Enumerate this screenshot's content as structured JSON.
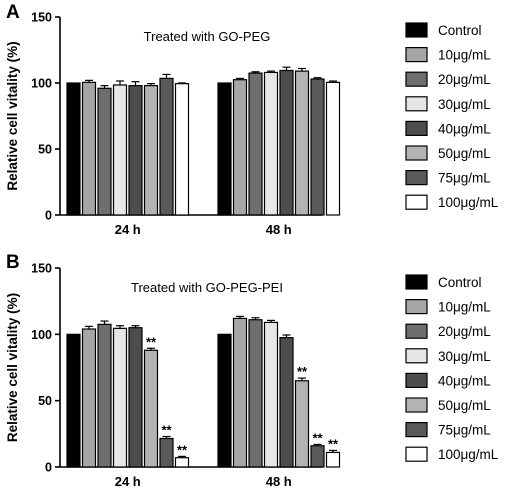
{
  "colors": [
    "#000000",
    "#a6a6a6",
    "#6e6e6e",
    "#e6e6e6",
    "#4d4d4d",
    "#b3b3b3",
    "#5a5a5a",
    "#ffffff"
  ],
  "panels": [
    {
      "letter": "A",
      "title": "Treated with GO-PEG",
      "ylabel": "Relative cell vitality (%)",
      "legend": [
        "Control",
        "10μg/mL",
        "20μg/mL",
        "30μg/mL",
        "40μg/mL",
        "50μg/mL",
        "75μg/mL",
        "100μg/mL"
      ]
    },
    {
      "letter": "B",
      "title": "Treated with GO-PEG-PEI",
      "ylabel": "Relative cell vitality (%)",
      "legend": [
        "Control",
        "10μg/mL",
        "20μg/mL",
        "30μg/mL",
        "40μg/mL",
        "50μg/mL",
        "75μg/mL",
        "100μg/mL"
      ]
    }
  ],
  "chart_data": [
    {
      "type": "bar",
      "title": "Treated with GO-PEG",
      "ylabel": "Relative cell vitality (%)",
      "categories": [
        "24 h",
        "48 h"
      ],
      "ylim": [
        0,
        150
      ],
      "yticks": [
        0,
        50,
        100,
        150
      ],
      "legend_position": "right",
      "series": [
        {
          "name": "Control",
          "values": [
            100,
            100
          ],
          "errors": [
            0,
            0
          ]
        },
        {
          "name": "10μg/mL",
          "values": [
            100.5,
            102.5
          ],
          "errors": [
            1.5,
            1
          ]
        },
        {
          "name": "20μg/mL",
          "values": [
            96,
            107.5
          ],
          "errors": [
            2,
            1
          ]
        },
        {
          "name": "30μg/mL",
          "values": [
            98.5,
            108
          ],
          "errors": [
            3,
            1
          ]
        },
        {
          "name": "40μg/mL",
          "values": [
            98,
            109.5
          ],
          "errors": [
            3,
            2.5
          ]
        },
        {
          "name": "50μg/mL",
          "values": [
            98,
            109
          ],
          "errors": [
            1.5,
            2
          ]
        },
        {
          "name": "75μg/mL",
          "values": [
            103.5,
            103
          ],
          "errors": [
            3,
            1
          ]
        },
        {
          "name": "100μg/mL",
          "values": [
            99.5,
            100.5
          ],
          "errors": [
            0.5,
            1
          ]
        }
      ],
      "annotations": []
    },
    {
      "type": "bar",
      "title": "Treated with GO-PEG-PEI",
      "ylabel": "Relative cell vitality (%)",
      "categories": [
        "24 h",
        "48 h"
      ],
      "ylim": [
        0,
        150
      ],
      "yticks": [
        0,
        50,
        100,
        150
      ],
      "legend_position": "right",
      "series": [
        {
          "name": "Control",
          "values": [
            100,
            100
          ],
          "errors": [
            0,
            0
          ]
        },
        {
          "name": "10μg/mL",
          "values": [
            104,
            112
          ],
          "errors": [
            2,
            1.5
          ]
        },
        {
          "name": "20μg/mL",
          "values": [
            107.5,
            111
          ],
          "errors": [
            2.5,
            1.5
          ]
        },
        {
          "name": "30μg/mL",
          "values": [
            104.5,
            109
          ],
          "errors": [
            2,
            1.5
          ]
        },
        {
          "name": "40μg/mL",
          "values": [
            105,
            97.5
          ],
          "errors": [
            1.5,
            2
          ]
        },
        {
          "name": "50μg/mL",
          "values": [
            88,
            65
          ],
          "errors": [
            1.5,
            2
          ]
        },
        {
          "name": "75μg/mL",
          "values": [
            21.5,
            16
          ],
          "errors": [
            1.5,
            1
          ]
        },
        {
          "name": "100μg/mL",
          "values": [
            7,
            11
          ],
          "errors": [
            1,
            1.5
          ]
        }
      ],
      "annotations": [
        {
          "series": "50μg/mL",
          "category": "24 h",
          "text": "**"
        },
        {
          "series": "75μg/mL",
          "category": "24 h",
          "text": "**"
        },
        {
          "series": "100μg/mL",
          "category": "24 h",
          "text": "**"
        },
        {
          "series": "50μg/mL",
          "category": "48 h",
          "text": "**"
        },
        {
          "series": "75μg/mL",
          "category": "48 h",
          "text": "**"
        },
        {
          "series": "100μg/mL",
          "category": "48 h",
          "text": "**"
        }
      ]
    }
  ]
}
